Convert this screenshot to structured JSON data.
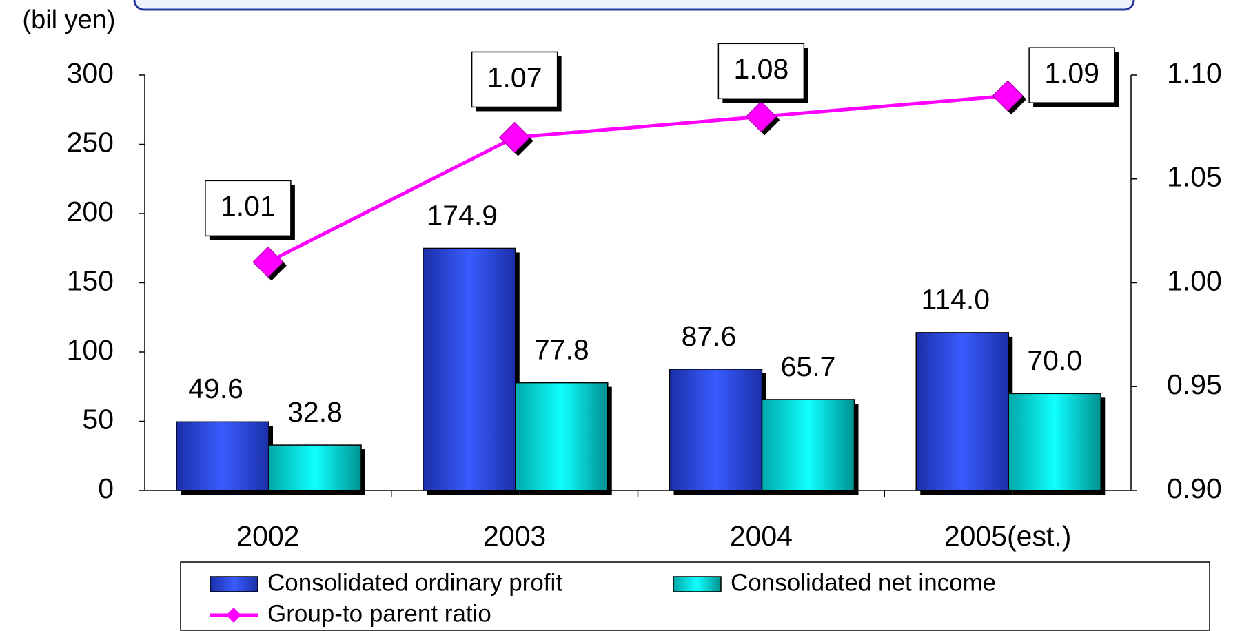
{
  "chart_data": {
    "type": "bar",
    "y_axis_label": "(bil yen)",
    "categories": [
      "2002",
      "2003",
      "2004",
      "2005(est.)"
    ],
    "series": [
      {
        "name": "Consolidated ordinary profit",
        "color": "#2e4fe0",
        "values": [
          49.6,
          174.9,
          87.6,
          114.0
        ],
        "value_labels": [
          "49.6",
          "174.9",
          "87.6",
          "114.0"
        ]
      },
      {
        "name": "Consolidated net income",
        "color": "#00d8d8",
        "values": [
          32.8,
          77.8,
          65.7,
          70.0
        ],
        "value_labels": [
          "32.8",
          "77.8",
          "65.7",
          "70.0"
        ]
      },
      {
        "name": "Group-to parent ratio",
        "color": "#ff00ff",
        "type": "line",
        "axis": "y2",
        "values": [
          1.01,
          1.07,
          1.08,
          1.09
        ]
      }
    ],
    "ylim": [
      0,
      300
    ],
    "yticks": [
      0,
      50,
      100,
      150,
      200,
      250,
      300
    ],
    "y2lim": [
      0.9,
      1.1
    ],
    "y2ticks": [
      {
        "value": 0.9,
        "label": "0.90"
      },
      {
        "value": 0.95,
        "label": "0.95"
      },
      {
        "value": 1.0,
        "label": "1.00"
      },
      {
        "value": 1.05,
        "label": "1.05"
      },
      {
        "value": 1.1,
        "label": "1.10"
      }
    ]
  }
}
